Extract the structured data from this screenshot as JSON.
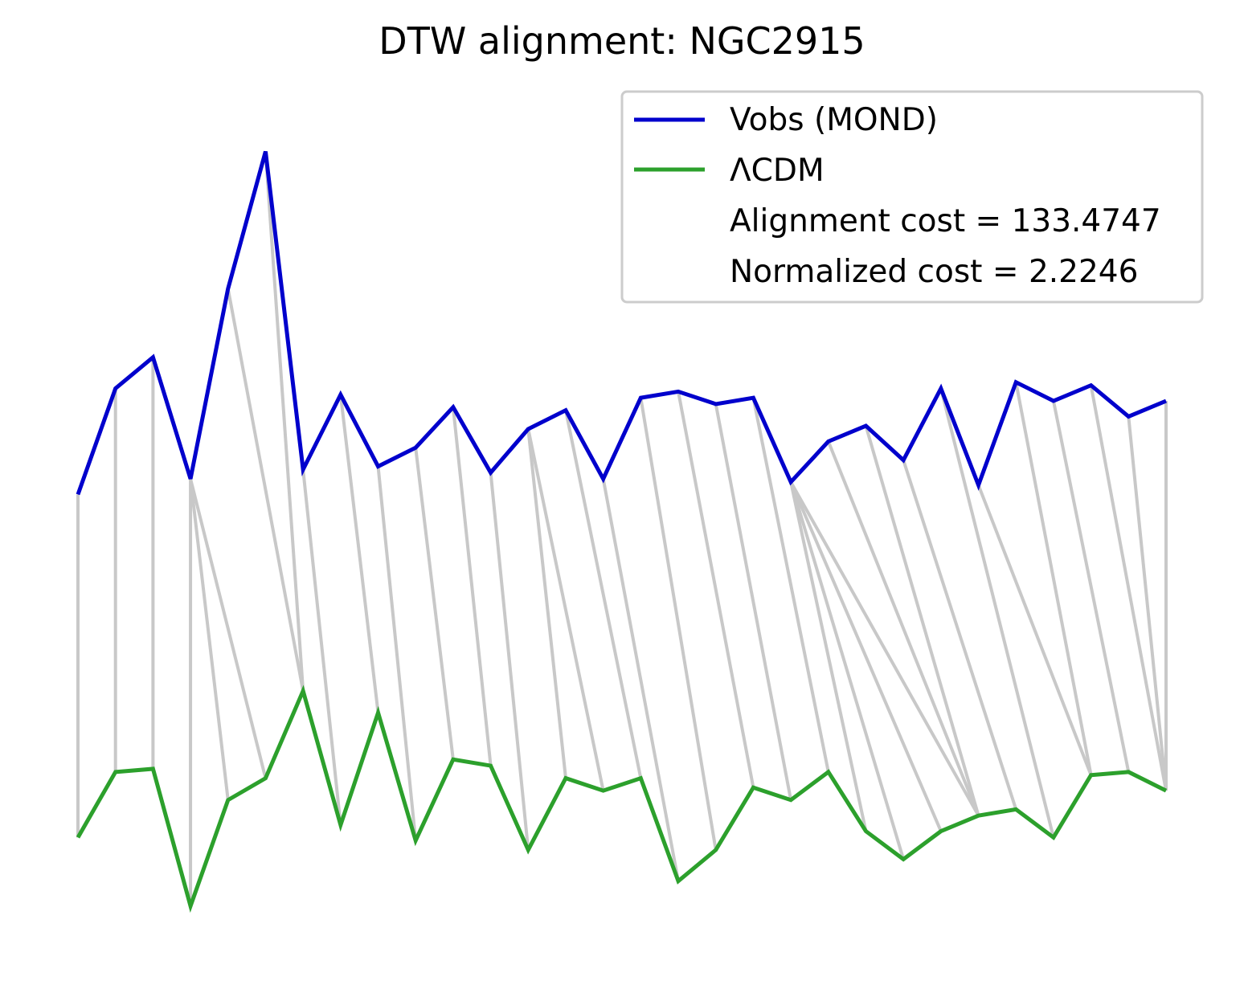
{
  "chart_data": {
    "type": "line",
    "title": "DTW alignment: NGC2915",
    "xlabel": "",
    "ylabel": "",
    "axes_visible": false,
    "grid": false,
    "legend": {
      "placement": "top-right",
      "entries": [
        {
          "label": "Vobs (MOND)",
          "color": "#0000cc",
          "kind": "line"
        },
        {
          "label": "ΛCDM",
          "color": "#2ca02c",
          "kind": "line"
        },
        {
          "label": "Alignment cost = 133.4747",
          "kind": "text"
        },
        {
          "label": "Normalized cost = 2.2246",
          "kind": "text"
        }
      ]
    },
    "x": [
      0,
      1,
      2,
      3,
      4,
      5,
      6,
      7,
      8,
      9,
      10,
      11,
      12,
      13,
      14,
      15,
      16,
      17,
      18,
      19,
      20,
      21,
      22,
      23,
      24,
      25,
      26,
      27,
      28,
      29
    ],
    "series": [
      {
        "name": "Vobs (MOND)",
        "color": "#0000cc",
        "values": [
          8.8,
          12.2,
          13.2,
          9.3,
          15.4,
          19.8,
          9.6,
          12.0,
          9.7,
          10.3,
          11.6,
          9.5,
          10.9,
          11.5,
          9.3,
          11.9,
          12.1,
          11.7,
          11.9,
          9.2,
          10.5,
          11.0,
          9.9,
          12.2,
          9.1,
          12.4,
          11.8,
          12.3,
          11.3,
          11.8
        ]
      },
      {
        "name": "ΛCDM",
        "color": "#2ca02c",
        "values": [
          -2.2,
          -0.1,
          0.0,
          -4.4,
          -1.0,
          -0.3,
          2.5,
          -1.8,
          1.8,
          -2.3,
          0.3,
          0.1,
          -2.6,
          -0.3,
          -0.7,
          -0.3,
          -3.6,
          -2.6,
          -0.6,
          -1.0,
          -0.1,
          -2.0,
          -2.9,
          -2.0,
          -1.5,
          -1.3,
          -2.2,
          -0.2,
          -0.1,
          -0.7
        ]
      }
    ],
    "alignment_pairs": [
      [
        0,
        0
      ],
      [
        1,
        1
      ],
      [
        2,
        2
      ],
      [
        3,
        3
      ],
      [
        3,
        4
      ],
      [
        3,
        5
      ],
      [
        4,
        6
      ],
      [
        5,
        6
      ],
      [
        6,
        7
      ],
      [
        7,
        8
      ],
      [
        8,
        9
      ],
      [
        9,
        10
      ],
      [
        10,
        11
      ],
      [
        11,
        12
      ],
      [
        12,
        13
      ],
      [
        12,
        14
      ],
      [
        13,
        15
      ],
      [
        14,
        16
      ],
      [
        15,
        17
      ],
      [
        16,
        18
      ],
      [
        17,
        19
      ],
      [
        18,
        20
      ],
      [
        19,
        21
      ],
      [
        19,
        22
      ],
      [
        19,
        23
      ],
      [
        19,
        24
      ],
      [
        20,
        24
      ],
      [
        21,
        24
      ],
      [
        22,
        25
      ],
      [
        23,
        26
      ],
      [
        24,
        27
      ],
      [
        25,
        27
      ],
      [
        26,
        28
      ],
      [
        27,
        29
      ],
      [
        28,
        29
      ],
      [
        29,
        29
      ]
    ],
    "alignment_color": "#c8c8c8",
    "ylim": [
      -5,
      21
    ]
  }
}
